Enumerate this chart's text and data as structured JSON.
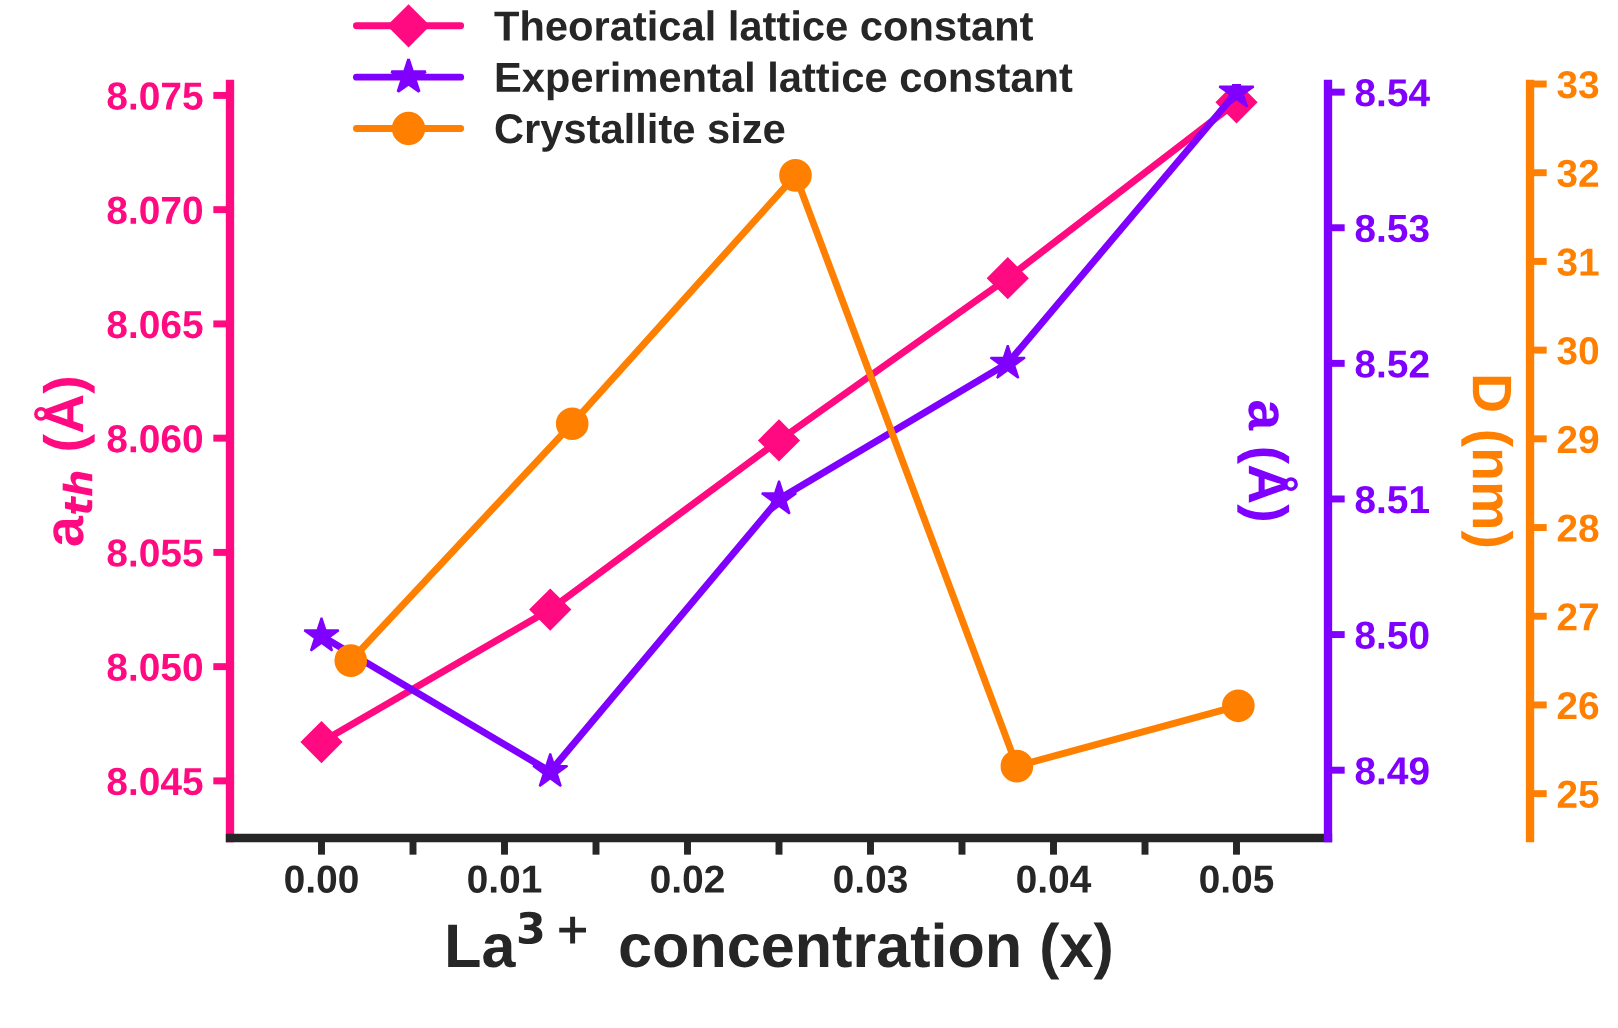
{
  "chart_data": {
    "type": "line",
    "xlabel": "La$^{3+}$ concentration (x)",
    "ylabel": "a$_{th}$ (Å)",
    "y2label": "a (Å)",
    "y3label": "D (nm)",
    "xlim": [
      -0.005,
      0.055
    ],
    "xticks": [
      {
        "value": 0,
        "label": "0.00"
      },
      {
        "value": 0.005,
        "label": null
      },
      0.01,
      {
        "value": 0.015,
        "label": null
      },
      0.02,
      {
        "value": 0.025,
        "label": null
      },
      0.03,
      {
        "value": 0.035,
        "label": null
      },
      0.04,
      {
        "value": 0.045,
        "label": null
      },
      0.05
    ],
    "ylim": [
      8.0425,
      8.0755
    ],
    "yticks": [
      8.045,
      {
        "value": 8.05,
        "label": "8.050"
      },
      8.055,
      {
        "value": 8.06,
        "label": "8.060"
      },
      8.065,
      {
        "value": 8.07,
        "label": "8.070"
      },
      8.075
    ],
    "y2lim": [
      8.485,
      8.5406
    ],
    "y2ticks": [
      8.49,
      {
        "value": 8.5,
        "label": "8.50"
      },
      8.51,
      8.52,
      8.53,
      8.54
    ],
    "y3lim": [
      24.5,
      33.0
    ],
    "y3ticks": [
      25,
      26,
      27,
      28,
      29,
      30,
      31,
      32,
      33
    ],
    "legend": "top",
    "series": [
      {
        "name": "Theoratical lattice constant",
        "color": "#ff0a80",
        "marker": "diamond",
        "axis": "y",
        "x": [
          0.0,
          0.0125,
          0.025,
          0.0375,
          0.05
        ],
        "values": [
          8.0467,
          8.0525,
          8.0599,
          8.067,
          8.0747
        ]
      },
      {
        "name": "Experimental lattice constant",
        "color": "#8000ff",
        "marker": "star",
        "axis": "y2",
        "x": [
          0.0,
          0.0125,
          0.025,
          0.0375,
          0.05
        ],
        "values": [
          8.4999,
          8.4899,
          8.51,
          8.52,
          8.54
        ]
      },
      {
        "name": "Crystallite size",
        "color": "#ff8000",
        "marker": "circle",
        "axis": "y3",
        "x": [
          0.0016,
          0.0137,
          0.0259,
          0.038,
          0.0501
        ],
        "values": [
          26.5,
          29.17,
          31.97,
          25.31,
          25.99
        ]
      }
    ]
  }
}
